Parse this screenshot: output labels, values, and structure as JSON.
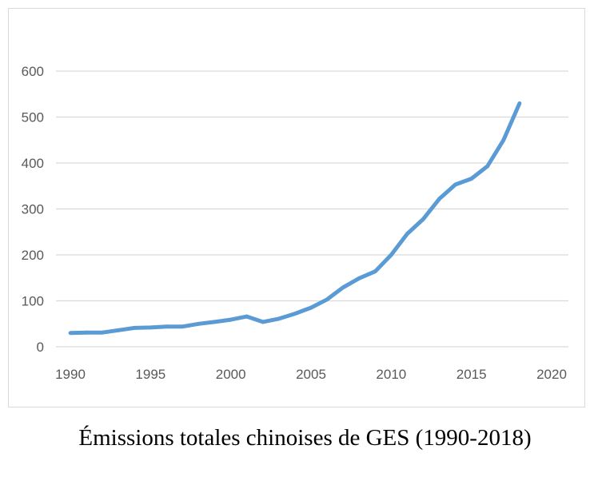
{
  "chart_data": {
    "type": "line",
    "title": "",
    "xlabel": "",
    "ylabel": "",
    "xlim": [
      1990,
      2020
    ],
    "ylim": [
      0,
      600
    ],
    "x_ticks": [
      "1990",
      "1995",
      "2000",
      "2005",
      "2010",
      "2015",
      "2020"
    ],
    "y_ticks": [
      "0",
      "100",
      "200",
      "300",
      "400",
      "500",
      "600"
    ],
    "grid": "horizontal",
    "legend": "none",
    "series": [
      {
        "color": "#5b9bd5",
        "x": [
          1990,
          1991,
          1992,
          1993,
          1994,
          1995,
          1996,
          1997,
          1998,
          1999,
          2000,
          2001,
          2002,
          2003,
          2004,
          2005,
          2006,
          2007,
          2008,
          2009,
          2010,
          2011,
          2012,
          2013,
          2014,
          2015,
          2016,
          2017,
          2018
        ],
        "values": [
          30,
          31,
          31,
          36,
          41,
          42,
          44,
          44,
          50,
          54,
          59,
          66,
          54,
          61,
          72,
          85,
          103,
          129,
          149,
          164,
          200,
          246,
          278,
          322,
          353,
          366,
          393,
          450,
          530
        ]
      }
    ]
  },
  "caption": "Émissions totales chinoises de GES (1990-2018)"
}
